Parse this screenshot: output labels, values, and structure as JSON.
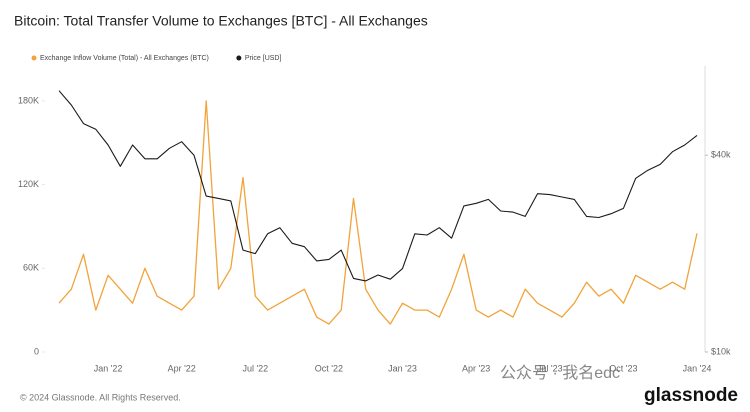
{
  "chart_data": {
    "type": "line",
    "title": "Bitcoin: Total Transfer Volume to Exchanges [BTC] - All Exchanges",
    "categories": [
      null,
      null,
      null,
      null,
      "Jan '22",
      null,
      null,
      null,
      null,
      null,
      "Apr '22",
      null,
      null,
      null,
      null,
      null,
      "Jul '22",
      null,
      null,
      null,
      null,
      null,
      "Oct '22",
      null,
      null,
      null,
      null,
      null,
      "Jan '23",
      null,
      null,
      null,
      null,
      null,
      "Apr '23",
      null,
      null,
      null,
      null,
      null,
      "Jul '23",
      null,
      null,
      null,
      null,
      null,
      "Oct '23",
      null,
      null,
      null,
      null,
      null,
      "Jan '24"
    ],
    "series": [
      {
        "name": "Exchange Inflow Volume (Total) - All Exchanges (BTC)",
        "color": "#f2a33a",
        "axis": "y",
        "values": [
          35000,
          45000,
          70000,
          30000,
          55000,
          45000,
          35000,
          60000,
          40000,
          35000,
          30000,
          40000,
          180000,
          45000,
          60000,
          125000,
          40000,
          30000,
          35000,
          40000,
          45000,
          25000,
          20000,
          30000,
          110000,
          45000,
          30000,
          20000,
          35000,
          30000,
          30000,
          25000,
          45000,
          70000,
          30000,
          25000,
          30000,
          25000,
          45000,
          35000,
          30000,
          25000,
          35000,
          50000,
          40000,
          45000,
          35000,
          55000,
          50000,
          45000,
          50000,
          45000,
          85000
        ]
      },
      {
        "name": "Price [USD]",
        "color": "#1a1a1a",
        "axis": "y2",
        "values": [
          63000,
          57000,
          50000,
          48000,
          43000,
          37000,
          43000,
          39000,
          39000,
          42000,
          44000,
          40000,
          30000,
          29500,
          29000,
          20500,
          20000,
          23000,
          24000,
          21500,
          21000,
          19000,
          19200,
          20500,
          16800,
          16500,
          17200,
          16700,
          18000,
          23000,
          22800,
          24000,
          22300,
          28000,
          28500,
          29300,
          27000,
          26800,
          26000,
          30500,
          30300,
          29800,
          29300,
          26000,
          25800,
          26500,
          27500,
          34000,
          36000,
          37500,
          41000,
          43000,
          46000
        ]
      }
    ],
    "ylim": [
      0,
      205000
    ],
    "yticks": [
      {
        "value": 0,
        "label": "0"
      },
      {
        "value": 60000,
        "label": "60K"
      },
      {
        "value": 120000,
        "label": "120K"
      },
      {
        "value": 180000,
        "label": "180K"
      }
    ],
    "y2lim": [
      10000,
      75000
    ],
    "y2ticks": [
      {
        "value": 10000,
        "label": "$10k"
      },
      {
        "value": 40000,
        "label": "$40k"
      }
    ],
    "y2log": true,
    "grid": false,
    "legend": "top-left",
    "footer": "© 2024 Glassnode. All Rights Reserved.",
    "logo": "glassnode",
    "watermark": "公众号 · 我名edc"
  }
}
